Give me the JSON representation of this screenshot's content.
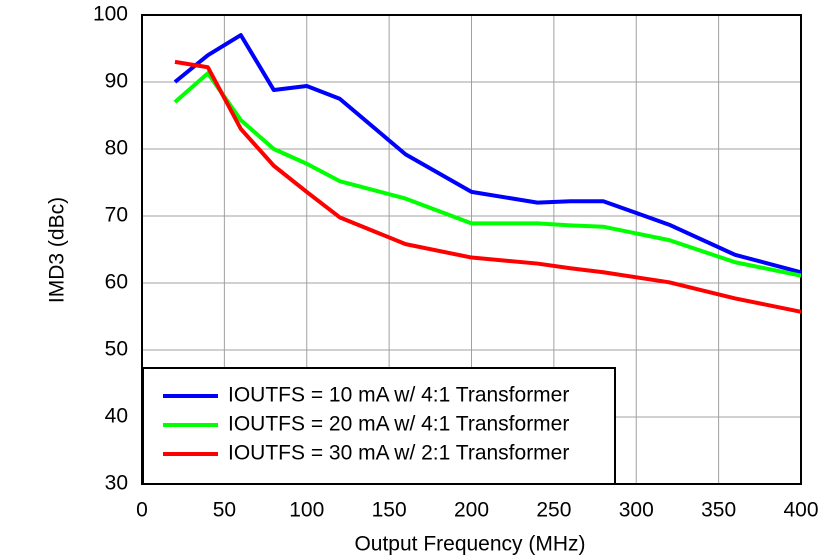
{
  "chart_data": {
    "type": "line",
    "xlabel": "Output Frequency (MHz)",
    "ylabel": "IMD3 (dBc)",
    "x": [
      20,
      40,
      60,
      80,
      100,
      120,
      160,
      200,
      240,
      260,
      280,
      320,
      360,
      400
    ],
    "series": [
      {
        "name": "IOUTFS = 10 mA w/ 4:1 Transformer",
        "color": "#0000ff",
        "values": [
          90,
          94,
          97,
          88.8,
          89.4,
          87.5,
          79.2,
          73.6,
          72,
          72.2,
          72.2,
          68.7,
          64.2,
          61.6
        ]
      },
      {
        "name": "IOUTFS = 20 mA w/ 4:1 Transformer",
        "color": "#00ff00",
        "values": [
          87,
          91.3,
          84.3,
          80,
          77.8,
          75.2,
          72.6,
          68.9,
          68.9,
          68.6,
          68.4,
          66.4,
          63.1,
          61.1
        ]
      },
      {
        "name": "IOUTFS = 30 mA w/ 2:1 Transformer",
        "color": "#ff0000",
        "values": [
          93,
          92.2,
          83,
          77.5,
          73.6,
          69.8,
          65.8,
          63.8,
          62.9,
          62.2,
          61.6,
          60.1,
          57.7,
          55.7
        ]
      }
    ],
    "xlim": [
      0,
      400
    ],
    "xticks": [
      0,
      50,
      100,
      150,
      200,
      250,
      300,
      350,
      400
    ],
    "ylim": [
      30,
      100
    ],
    "yticks": [
      30,
      40,
      50,
      60,
      70,
      80,
      90,
      100
    ],
    "grid": true,
    "legend": "lower left"
  }
}
